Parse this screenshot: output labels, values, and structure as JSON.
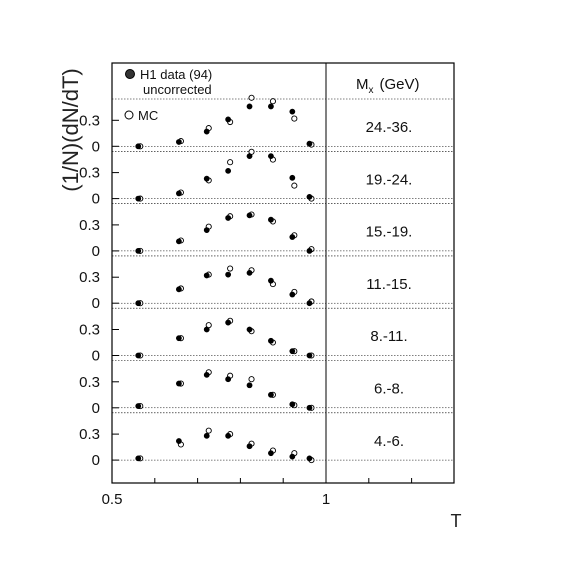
{
  "chart_data": {
    "type": "scatter",
    "xlabel": "T",
    "ylabel": "(1/N)(dN/dT)",
    "xlim": [
      0.5,
      1.3
    ],
    "x_ticks": [
      "0.5",
      "1"
    ],
    "y_tick_labels": [
      "0",
      "0.3"
    ],
    "panel_header": "M",
    "panel_header_sub": "x",
    "panel_header_unit": "(GeV)",
    "legend": {
      "data_label": "H1 data (94)",
      "data_label2": "uncorrected",
      "mc_label": "MC"
    },
    "x": [
      0.5625,
      0.6575,
      0.7225,
      0.7725,
      0.8225,
      0.8725,
      0.9225,
      0.9625
    ],
    "panels": [
      {
        "range": "24.-36.",
        "series": [
          {
            "name": "H1 data (94)",
            "values": [
              0.0,
              0.05,
              0.17,
              0.31,
              0.46,
              0.46,
              0.4,
              0.03
            ]
          },
          {
            "name": "MC",
            "values": [
              0.0,
              0.06,
              0.21,
              0.28,
              0.56,
              0.52,
              0.32,
              0.02
            ]
          }
        ]
      },
      {
        "range": "19.-24.",
        "series": [
          {
            "name": "H1 data (94)",
            "values": [
              0.0,
              0.06,
              0.23,
              0.32,
              0.49,
              0.49,
              0.24,
              0.02
            ]
          },
          {
            "name": "MC",
            "values": [
              0.0,
              0.07,
              0.21,
              0.42,
              0.54,
              0.45,
              0.15,
              0.0
            ]
          }
        ]
      },
      {
        "range": "15.-19.",
        "series": [
          {
            "name": "H1 data (94)",
            "values": [
              0.0,
              0.11,
              0.24,
              0.38,
              0.41,
              0.36,
              0.16,
              0.0
            ]
          },
          {
            "name": "MC",
            "values": [
              0.0,
              0.12,
              0.28,
              0.4,
              0.42,
              0.34,
              0.18,
              0.02
            ]
          }
        ]
      },
      {
        "range": "11.-15.",
        "series": [
          {
            "name": "H1 data (94)",
            "values": [
              0.0,
              0.16,
              0.32,
              0.33,
              0.35,
              0.26,
              0.1,
              0.0
            ]
          },
          {
            "name": "MC",
            "values": [
              0.0,
              0.17,
              0.33,
              0.4,
              0.38,
              0.22,
              0.13,
              0.02
            ]
          }
        ]
      },
      {
        "range": "8.-11.",
        "series": [
          {
            "name": "H1 data (94)",
            "values": [
              0.0,
              0.2,
              0.3,
              0.38,
              0.3,
              0.17,
              0.05,
              0.0
            ]
          },
          {
            "name": "MC",
            "values": [
              0.0,
              0.2,
              0.35,
              0.4,
              0.28,
              0.15,
              0.05,
              0.0
            ]
          }
        ]
      },
      {
        "range": "6.-8.",
        "series": [
          {
            "name": "H1 data (94)",
            "values": [
              0.02,
              0.28,
              0.38,
              0.33,
              0.26,
              0.15,
              0.04,
              0.0
            ]
          },
          {
            "name": "MC",
            "values": [
              0.02,
              0.28,
              0.41,
              0.37,
              0.33,
              0.15,
              0.03,
              0.0
            ]
          }
        ]
      },
      {
        "range": "4.-6.",
        "series": [
          {
            "name": "H1 data (94)",
            "values": [
              0.02,
              0.22,
              0.28,
              0.28,
              0.16,
              0.08,
              0.04,
              0.02
            ]
          },
          {
            "name": "MC",
            "values": [
              0.02,
              0.18,
              0.34,
              0.3,
              0.19,
              0.11,
              0.08,
              0.0
            ]
          }
        ]
      }
    ]
  }
}
